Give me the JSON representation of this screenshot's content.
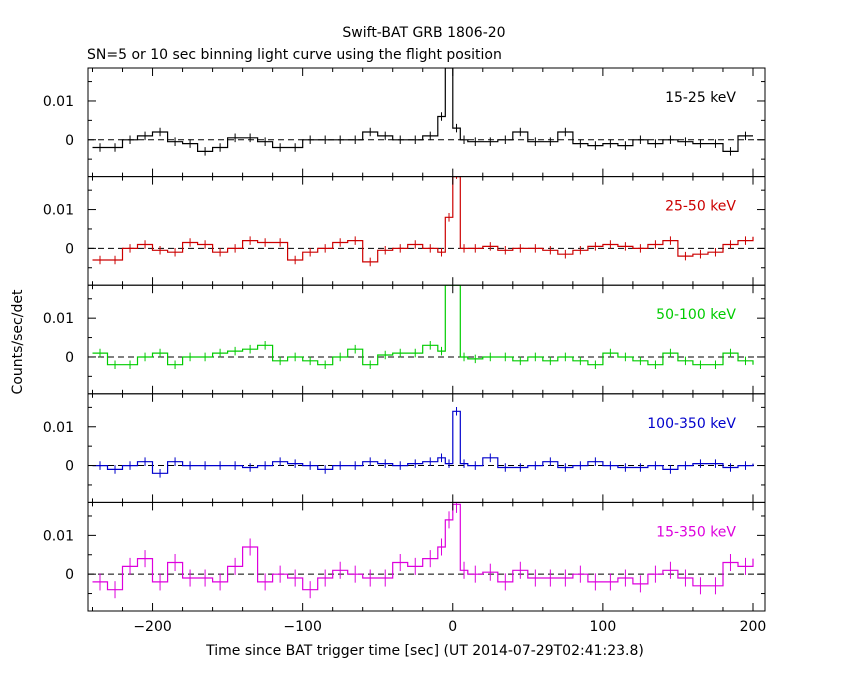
{
  "title": "Swift-BAT GRB 1806-20",
  "subtitle": "SN=5 or 10 sec binning light curve using the flight position",
  "ylabel": "Counts/sec/det",
  "xlabel": "Time since BAT trigger time [sec] (UT 2014-07-29T02:41:23.8)",
  "chart_data": {
    "type": "line",
    "step": true,
    "xlim": [
      -243,
      208
    ],
    "ylim": [
      -0.0095,
      0.0185
    ],
    "x_ticks": [
      -200,
      -100,
      0,
      100,
      200
    ],
    "x_tick_labels": [
      "−200",
      "−100",
      "0",
      "100",
      "200"
    ],
    "y_tick_labels": [
      "0.01",
      "0"
    ],
    "y_tick_values": [
      0.01,
      0
    ],
    "bin_edges": [
      -240,
      -230,
      -220,
      -210,
      -200,
      -190,
      -180,
      -170,
      -160,
      -150,
      -140,
      -130,
      -120,
      -110,
      -100,
      -90,
      -80,
      -70,
      -60,
      -50,
      -40,
      -30,
      -20,
      -10,
      -5,
      0,
      5,
      10,
      20,
      30,
      40,
      50,
      60,
      70,
      80,
      90,
      100,
      110,
      120,
      130,
      140,
      150,
      160,
      170,
      180,
      190,
      200
    ],
    "series": [
      {
        "name": "15-25 keV",
        "color": "#000000",
        "values": [
          -0.002,
          -0.002,
          0.0,
          0.001,
          0.002,
          -0.0005,
          -0.001,
          -0.003,
          -0.002,
          0.0005,
          0.0005,
          -0.0005,
          -0.002,
          -0.002,
          0.0,
          0.0,
          0.0,
          0.0,
          0.002,
          0.001,
          0.0,
          0.0,
          0.001,
          0.006,
          0.025,
          0.003,
          0.0,
          -0.0005,
          -0.0005,
          0.0,
          0.002,
          -0.0005,
          -0.0005,
          0.002,
          -0.001,
          -0.0015,
          -0.001,
          -0.0015,
          0.0,
          -0.001,
          0.0,
          -0.0005,
          -0.001,
          -0.001,
          -0.003,
          0.001,
          0.001
        ]
      },
      {
        "name": "25-50 keV",
        "color": "#cc0000",
        "values": [
          -0.003,
          -0.003,
          0.0,
          0.001,
          -0.0005,
          -0.001,
          0.0015,
          0.001,
          -0.001,
          0.0,
          0.002,
          0.0015,
          0.0015,
          -0.003,
          -0.001,
          0.0,
          0.0015,
          0.002,
          -0.0035,
          -0.0005,
          0.0,
          0.001,
          0.0,
          -0.001,
          0.008,
          0.019,
          0.0,
          0.0,
          0.0005,
          -0.0005,
          0.0,
          0.0,
          -0.0005,
          -0.0015,
          -0.0005,
          0.0005,
          0.001,
          0.0005,
          0.0,
          0.001,
          0.002,
          -0.002,
          -0.0015,
          -0.001,
          0.001,
          0.002,
          0.003
        ]
      },
      {
        "name": "50-100 keV",
        "color": "#00cc00",
        "values": [
          0.001,
          -0.002,
          -0.002,
          0.0,
          0.001,
          -0.002,
          0.0,
          0.0,
          0.001,
          0.0015,
          0.002,
          0.003,
          -0.001,
          0.0,
          -0.001,
          -0.002,
          0.0,
          0.002,
          -0.002,
          0.0005,
          0.001,
          0.001,
          0.003,
          0.0015,
          0.025,
          0.025,
          0.0,
          -0.0005,
          0.0,
          0.0,
          -0.001,
          0.0,
          -0.001,
          0.0,
          -0.001,
          -0.002,
          0.001,
          0.0,
          -0.001,
          -0.002,
          0.001,
          -0.001,
          -0.002,
          -0.002,
          0.001,
          -0.001,
          -0.002
        ]
      },
      {
        "name": "100-350 keV",
        "color": "#0000cc",
        "values": [
          0.0,
          -0.001,
          0.0,
          0.001,
          -0.002,
          0.001,
          0.0,
          0.0,
          0.0,
          0.0,
          -0.0005,
          0.0,
          0.001,
          0.0005,
          0.0,
          -0.001,
          0.0,
          0.0,
          0.001,
          0.0005,
          0.0,
          0.0005,
          0.001,
          0.002,
          0.0005,
          0.014,
          0.0005,
          0.0,
          0.002,
          -0.0005,
          -0.0005,
          0.0,
          0.001,
          -0.0005,
          0.0,
          0.001,
          0.0,
          -0.0005,
          -0.0005,
          0.0,
          -0.001,
          0.0,
          0.0005,
          0.0005,
          -0.0005,
          0.0,
          0.0005
        ]
      },
      {
        "name": "15-350 keV",
        "color": "#dd00dd",
        "values": [
          -0.002,
          -0.004,
          0.002,
          0.004,
          -0.002,
          0.003,
          -0.001,
          -0.001,
          -0.002,
          0.002,
          0.007,
          -0.002,
          0.0,
          -0.001,
          -0.004,
          -0.001,
          0.001,
          0.0,
          -0.001,
          -0.001,
          0.003,
          0.002,
          0.004,
          0.007,
          0.014,
          0.018,
          0.001,
          0.0,
          0.0005,
          -0.002,
          0.001,
          -0.001,
          -0.001,
          -0.001,
          0.0,
          -0.002,
          -0.002,
          -0.001,
          -0.0025,
          0.0,
          0.001,
          -0.001,
          -0.003,
          -0.003,
          0.003,
          0.002,
          0.004
        ]
      }
    ]
  }
}
